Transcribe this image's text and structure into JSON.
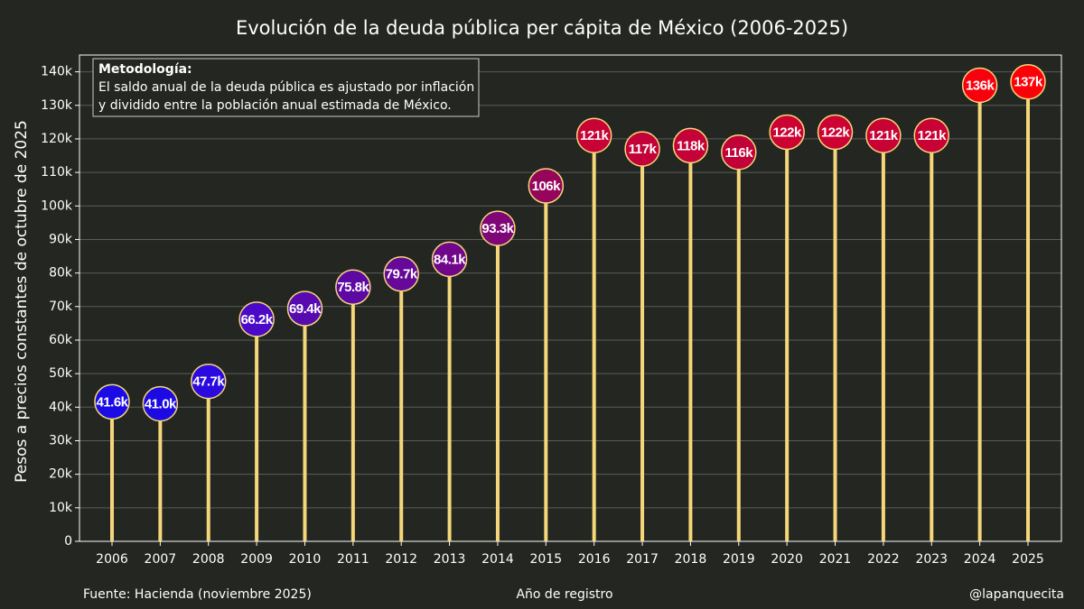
{
  "chart_data": {
    "type": "lollipop",
    "title": "Evolución de la deuda pública per cápita de México (2006-2025)",
    "y_label": "Pesos a precios constantes de octubre de 2025",
    "x_label": "Año de registro",
    "source": "Fuente: Hacienda (noviembre 2025)",
    "credit": "@lapanquecita",
    "annotation": {
      "title": "Metodología:",
      "lines": [
        "El saldo anual de la deuda pública es ajustado por inflación",
        "y dividido entre la población anual estimada de México."
      ]
    },
    "categories": [
      "2006",
      "2007",
      "2008",
      "2009",
      "2010",
      "2011",
      "2012",
      "2013",
      "2014",
      "2015",
      "2016",
      "2017",
      "2018",
      "2019",
      "2020",
      "2021",
      "2022",
      "2023",
      "2024",
      "2025"
    ],
    "values": [
      41600,
      41000,
      47700,
      66200,
      69400,
      75800,
      79700,
      84100,
      93300,
      106000,
      121000,
      117000,
      118000,
      116000,
      122000,
      122000,
      121000,
      121000,
      136000,
      137000
    ],
    "value_labels": [
      "41.6k",
      "41.0k",
      "47.7k",
      "66.2k",
      "69.4k",
      "75.8k",
      "79.7k",
      "84.1k",
      "93.3k",
      "106k",
      "121k",
      "117k",
      "118k",
      "116k",
      "122k",
      "122k",
      "121k",
      "121k",
      "136k",
      "137k"
    ],
    "colors": [
      "#1a0ae6",
      "#1c0ae2",
      "#2a0ade",
      "#4a0ac8",
      "#560ab0",
      "#5e08a4",
      "#660898",
      "#70068a",
      "#7e0676",
      "#95055a",
      "#c80235",
      "#c20238",
      "#c40237",
      "#c00239",
      "#cc0232",
      "#cc0232",
      "#c80235",
      "#c80235",
      "#f8000e",
      "#fc0008"
    ],
    "stem_color": "#f5d67a",
    "ylim": [
      0,
      145000
    ],
    "yticks": [
      {
        "value": 0,
        "label": "0"
      },
      {
        "value": 10000,
        "label": "10k"
      },
      {
        "value": 20000,
        "label": "20k"
      },
      {
        "value": 30000,
        "label": "30k"
      },
      {
        "value": 40000,
        "label": "40k"
      },
      {
        "value": 50000,
        "label": "50k"
      },
      {
        "value": 60000,
        "label": "60k"
      },
      {
        "value": 70000,
        "label": "70k"
      },
      {
        "value": 80000,
        "label": "80k"
      },
      {
        "value": 90000,
        "label": "90k"
      },
      {
        "value": 100000,
        "label": "100k"
      },
      {
        "value": 110000,
        "label": "110k"
      },
      {
        "value": 120000,
        "label": "120k"
      },
      {
        "value": 130000,
        "label": "130k"
      },
      {
        "value": 140000,
        "label": "140k"
      }
    ],
    "grid": true
  }
}
